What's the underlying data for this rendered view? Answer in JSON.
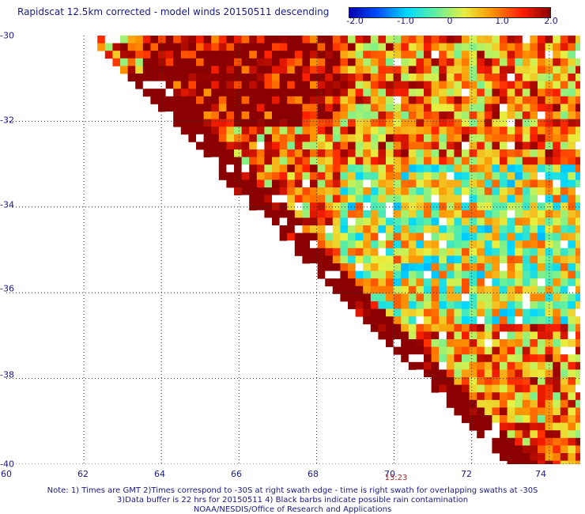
{
  "title": "Rapidscat 12.5km corrected - model winds 20150511 descending",
  "colorbar": {
    "ticks": [
      "-2.0",
      "-1.0",
      "0",
      "1.0",
      "2.0"
    ],
    "range": [
      -2.0,
      2.0
    ],
    "colors": [
      "#0000b0",
      "#0050ff",
      "#00d8ff",
      "#60f0a0",
      "#e8f040",
      "#ff9000",
      "#ff2000",
      "#8b0000"
    ]
  },
  "map": {
    "lat_labels": [
      "-30",
      "-32",
      "-34",
      "-36",
      "-38",
      "-40"
    ],
    "lon_labels": [
      "60",
      "62",
      "64",
      "66",
      "68",
      "70",
      "72",
      "74"
    ],
    "lat_range": [
      -40,
      -30
    ],
    "lon_range": [
      60,
      74.8
    ],
    "grid": "dotted",
    "swath_time": "13:23",
    "missing_color": "#ffffff",
    "edge_color": "#8b0000"
  },
  "notes": [
    "Note: 1) Times are GMT 2)Times correspond to -30S at right swath edge - time is right swath for overlapping swaths at -30S",
    "3)Data buffer is 22 hrs for 20150511 4) Black barbs indicate possible rain contamination",
    "NOAA/NESDIS/Office of Research and Applications"
  ]
}
